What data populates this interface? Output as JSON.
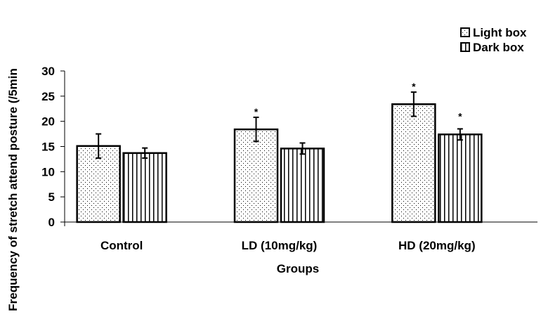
{
  "chart_data": {
    "type": "bar",
    "title": "",
    "xlabel": "Groups",
    "ylabel": "Frequency of stretch attend posture (/5min",
    "ylim": [
      0,
      30
    ],
    "yticks": [
      0,
      5,
      10,
      15,
      20,
      25,
      30
    ],
    "categories": [
      "Control",
      "LD (10mg/kg)",
      "HD (20mg/kg)"
    ],
    "series": [
      {
        "name": "Light box",
        "pattern": "dots",
        "values": [
          15.1,
          18.4,
          23.4
        ],
        "errors": [
          2.4,
          2.4,
          2.4
        ],
        "significance": [
          "",
          "*",
          "*"
        ]
      },
      {
        "name": "Dark box",
        "pattern": "vertical-lines",
        "values": [
          13.7,
          14.6,
          17.4
        ],
        "errors": [
          1.0,
          1.1,
          1.1
        ],
        "significance": [
          "",
          "",
          "*"
        ]
      }
    ],
    "legend_position": "top-right",
    "grid": false
  }
}
